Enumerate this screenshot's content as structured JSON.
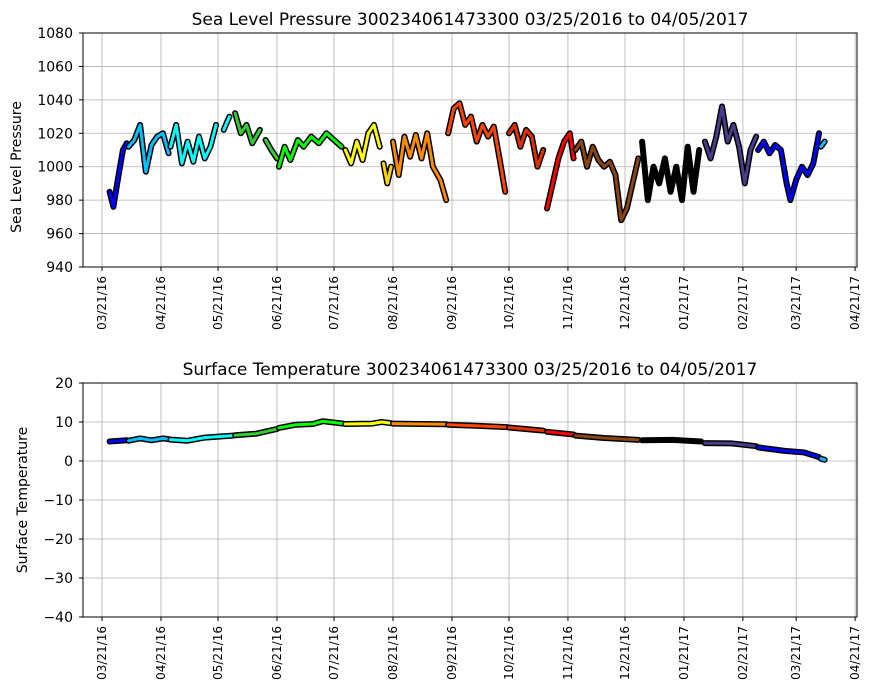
{
  "chart_data": [
    {
      "type": "scatter",
      "title": "Sea Level Pressure 300234061473300  03/25/2016 to 04/05/2017",
      "xlabel": "",
      "ylabel": "Sea Level Pressure",
      "ylim": [
        940,
        1080
      ],
      "yticks": [
        940,
        960,
        980,
        1000,
        1020,
        1040,
        1060,
        1080
      ],
      "xlim": [
        "03/11/16",
        "04/22/17"
      ],
      "xticks": [
        "03/21/16",
        "04/21/16",
        "05/21/16",
        "06/21/16",
        "07/21/16",
        "08/21/16",
        "09/21/16",
        "10/21/16",
        "11/21/16",
        "12/21/16",
        "01/21/17",
        "02/21/17",
        "03/21/17",
        "04/21/17"
      ],
      "grid": true,
      "segments": [
        {
          "color": "#0000ff",
          "points": [
            [
              "03/25/16",
              985
            ],
            [
              "03/27/16",
              976
            ],
            [
              "03/29/16",
              990
            ],
            [
              "04/01/16",
              1010
            ],
            [
              "04/03/16",
              1014
            ]
          ]
        },
        {
          "color": "#00bfff",
          "points": [
            [
              "04/04/16",
              1012
            ],
            [
              "04/07/16",
              1016
            ],
            [
              "04/10/16",
              1025
            ],
            [
              "04/13/16",
              997
            ],
            [
              "04/16/16",
              1013
            ],
            [
              "04/19/16",
              1018
            ],
            [
              "04/22/16",
              1020
            ],
            [
              "04/25/16",
              1008
            ]
          ]
        },
        {
          "color": "#00ffff",
          "points": [
            [
              "04/26/16",
              1012
            ],
            [
              "04/29/16",
              1025
            ],
            [
              "05/02/16",
              1002
            ],
            [
              "05/05/16",
              1015
            ],
            [
              "05/08/16",
              1003
            ],
            [
              "05/11/16",
              1018
            ],
            [
              "05/14/16",
              1005
            ],
            [
              "05/17/16",
              1012
            ],
            [
              "05/20/16",
              1025
            ]
          ]
        },
        {
          "color": "#00ffff",
          "points": [
            [
              "05/24/16",
              1022
            ],
            [
              "05/27/16",
              1030
            ]
          ]
        },
        {
          "color": "#32cd32",
          "points": [
            [
              "05/30/16",
              1032
            ],
            [
              "06/02/16",
              1020
            ],
            [
              "06/05/16",
              1025
            ],
            [
              "06/08/16",
              1014
            ],
            [
              "06/12/16",
              1022
            ]
          ]
        },
        {
          "color": "#32cd32",
          "points": [
            [
              "06/15/16",
              1016
            ],
            [
              "06/18/16",
              1010
            ],
            [
              "06/21/16",
              1005
            ]
          ]
        },
        {
          "color": "#00ff00",
          "points": [
            [
              "06/22/16",
              1000
            ],
            [
              "06/25/16",
              1012
            ],
            [
              "06/28/16",
              1004
            ],
            [
              "07/02/16",
              1016
            ],
            [
              "07/05/16",
              1012
            ],
            [
              "07/09/16",
              1018
            ],
            [
              "07/13/16",
              1014
            ],
            [
              "07/17/16",
              1020
            ],
            [
              "07/21/16",
              1016
            ],
            [
              "07/25/16",
              1012
            ]
          ]
        },
        {
          "color": "#ffff00",
          "points": [
            [
              "07/27/16",
              1010
            ],
            [
              "07/30/16",
              1002
            ],
            [
              "08/02/16",
              1015
            ],
            [
              "08/05/16",
              1004
            ],
            [
              "08/08/16",
              1020
            ],
            [
              "08/11/16",
              1025
            ],
            [
              "08/14/16",
              1012
            ]
          ]
        },
        {
          "color": "#ffd700",
          "points": [
            [
              "08/16/16",
              1002
            ],
            [
              "08/18/16",
              990
            ],
            [
              "08/20/16",
              1000
            ]
          ]
        },
        {
          "color": "#ff8c00",
          "points": [
            [
              "08/21/16",
              1015
            ],
            [
              "08/24/16",
              995
            ],
            [
              "08/27/16",
              1018
            ],
            [
              "08/30/16",
              1006
            ],
            [
              "09/02/16",
              1019
            ],
            [
              "09/05/16",
              1005
            ],
            [
              "09/08/16",
              1020
            ],
            [
              "09/11/16",
              1000
            ],
            [
              "09/15/16",
              992
            ],
            [
              "09/18/16",
              980
            ]
          ]
        },
        {
          "color": "#ff4500",
          "points": [
            [
              "09/19/16",
              1020
            ],
            [
              "09/22/16",
              1035
            ],
            [
              "09/25/16",
              1038
            ],
            [
              "09/28/16",
              1025
            ],
            [
              "10/01/16",
              1030
            ],
            [
              "10/04/16",
              1015
            ],
            [
              "10/07/16",
              1025
            ],
            [
              "10/10/16",
              1018
            ],
            [
              "10/13/16",
              1024
            ],
            [
              "10/16/16",
              1005
            ],
            [
              "10/19/16",
              985
            ]
          ]
        },
        {
          "color": "#e03000",
          "points": [
            [
              "10/21/16",
              1020
            ],
            [
              "10/24/16",
              1025
            ],
            [
              "10/27/16",
              1012
            ],
            [
              "10/30/16",
              1022
            ],
            [
              "11/02/16",
              1018
            ],
            [
              "11/05/16",
              1000
            ],
            [
              "11/08/16",
              1010
            ]
          ]
        },
        {
          "color": "#ff0000",
          "points": [
            [
              "11/10/16",
              975
            ],
            [
              "11/13/16",
              990
            ],
            [
              "11/16/16",
              1005
            ],
            [
              "11/19/16",
              1015
            ],
            [
              "11/22/16",
              1020
            ],
            [
              "11/24/16",
              1005
            ]
          ]
        },
        {
          "color": "#8b4513",
          "points": [
            [
              "11/25/16",
              1010
            ],
            [
              "11/28/16",
              1015
            ],
            [
              "12/01/16",
              1000
            ],
            [
              "12/04/16",
              1012
            ],
            [
              "12/07/16",
              1004
            ],
            [
              "12/10/16",
              1000
            ],
            [
              "12/13/16",
              1003
            ],
            [
              "12/16/16",
              995
            ],
            [
              "12/19/16",
              968
            ],
            [
              "12/22/16",
              975
            ],
            [
              "12/25/16",
              990
            ],
            [
              "12/28/16",
              1005
            ]
          ]
        },
        {
          "color": "#000000",
          "points": [
            [
              "12/30/16",
              1015
            ],
            [
              "01/02/17",
              980
            ],
            [
              "01/05/17",
              1000
            ],
            [
              "01/08/17",
              990
            ],
            [
              "01/11/17",
              1005
            ],
            [
              "01/14/17",
              985
            ],
            [
              "01/17/17",
              1000
            ],
            [
              "01/20/17",
              980
            ],
            [
              "01/23/17",
              1012
            ],
            [
              "01/26/17",
              985
            ],
            [
              "01/29/17",
              1010
            ]
          ]
        },
        {
          "color": "#483d8b",
          "points": [
            [
              "02/01/17",
              1015
            ],
            [
              "02/04/17",
              1005
            ],
            [
              "02/07/17",
              1018
            ],
            [
              "02/10/17",
              1036
            ],
            [
              "02/13/17",
              1015
            ],
            [
              "02/16/17",
              1025
            ],
            [
              "02/19/17",
              1012
            ],
            [
              "02/22/17",
              990
            ],
            [
              "02/25/17",
              1010
            ],
            [
              "02/28/17",
              1018
            ]
          ]
        },
        {
          "color": "#0000ff",
          "points": [
            [
              "03/01/17",
              1010
            ],
            [
              "03/04/17",
              1015
            ],
            [
              "03/07/17",
              1008
            ],
            [
              "03/10/17",
              1013
            ],
            [
              "03/13/17",
              1010
            ],
            [
              "03/16/17",
              990
            ],
            [
              "03/18/17",
              980
            ],
            [
              "03/21/17",
              992
            ],
            [
              "03/24/17",
              1000
            ],
            [
              "03/27/17",
              995
            ],
            [
              "03/30/17",
              1002
            ],
            [
              "04/02/17",
              1020
            ]
          ]
        },
        {
          "color": "#00bfff",
          "points": [
            [
              "04/03/17",
              1012
            ],
            [
              "04/05/17",
              1015
            ]
          ]
        }
      ]
    },
    {
      "type": "scatter",
      "title": "Surface Temperature 300234061473300  03/25/2016 to 04/05/2017",
      "xlabel": "",
      "ylabel": "Surface Temperature",
      "ylim": [
        -40,
        20
      ],
      "yticks": [
        -40,
        -30,
        -20,
        -10,
        0,
        10,
        20
      ],
      "ytick_labels": [
        "−40",
        "−30",
        "−20",
        "−10",
        "0",
        "10",
        "20"
      ],
      "xlim": [
        "03/11/16",
        "04/22/17"
      ],
      "xticks": [
        "03/21/16",
        "04/21/16",
        "05/21/16",
        "06/21/16",
        "07/21/16",
        "08/21/16",
        "09/21/16",
        "10/21/16",
        "11/21/16",
        "12/21/16",
        "01/21/17",
        "02/21/17",
        "03/21/17",
        "04/21/17"
      ],
      "grid": true,
      "segments": [
        {
          "color": "#0000ff",
          "points": [
            [
              "03/25/16",
              5.0
            ],
            [
              "04/03/16",
              5.3
            ]
          ]
        },
        {
          "color": "#00bfff",
          "points": [
            [
              "04/04/16",
              5.2
            ],
            [
              "04/10/16",
              5.8
            ],
            [
              "04/16/16",
              5.3
            ],
            [
              "04/22/16",
              5.8
            ],
            [
              "04/25/16",
              5.6
            ]
          ]
        },
        {
          "color": "#00ffff",
          "points": [
            [
              "04/26/16",
              5.5
            ],
            [
              "05/05/16",
              5.2
            ],
            [
              "05/14/16",
              6.0
            ],
            [
              "05/23/16",
              6.3
            ],
            [
              "05/29/16",
              6.5
            ]
          ]
        },
        {
          "color": "#32cd32",
          "points": [
            [
              "05/30/16",
              6.6
            ],
            [
              "06/10/16",
              7.0
            ],
            [
              "06/21/16",
              8.2
            ]
          ]
        },
        {
          "color": "#00ff00",
          "points": [
            [
              "06/22/16",
              8.5
            ],
            [
              "07/01/16",
              9.3
            ],
            [
              "07/10/16",
              9.5
            ],
            [
              "07/15/16",
              10.2
            ],
            [
              "07/26/16",
              9.6
            ]
          ]
        },
        {
          "color": "#ffff00",
          "points": [
            [
              "07/27/16",
              9.5
            ],
            [
              "08/10/16",
              9.6
            ],
            [
              "08/15/16",
              10.0
            ],
            [
              "08/20/16",
              9.7
            ]
          ]
        },
        {
          "color": "#ff8c00",
          "points": [
            [
              "08/21/16",
              9.6
            ],
            [
              "09/05/16",
              9.5
            ],
            [
              "09/18/16",
              9.4
            ]
          ]
        },
        {
          "color": "#ff4500",
          "points": [
            [
              "09/19/16",
              9.3
            ],
            [
              "10/05/16",
              9.0
            ],
            [
              "10/20/16",
              8.7
            ]
          ]
        },
        {
          "color": "#e03000",
          "points": [
            [
              "10/21/16",
              8.6
            ],
            [
              "11/08/16",
              7.8
            ]
          ]
        },
        {
          "color": "#ff0000",
          "points": [
            [
              "11/10/16",
              7.5
            ],
            [
              "11/24/16",
              6.8
            ]
          ]
        },
        {
          "color": "#8b4513",
          "points": [
            [
              "11/25/16",
              6.5
            ],
            [
              "12/10/16",
              5.9
            ],
            [
              "12/28/16",
              5.4
            ]
          ]
        },
        {
          "color": "#000000",
          "points": [
            [
              "12/30/16",
              5.3
            ],
            [
              "01/15/17",
              5.4
            ],
            [
              "01/30/17",
              5.0
            ]
          ]
        },
        {
          "color": "#483d8b",
          "points": [
            [
              "02/01/17",
              4.6
            ],
            [
              "02/15/17",
              4.5
            ],
            [
              "02/28/17",
              3.8
            ]
          ]
        },
        {
          "color": "#0000ff",
          "points": [
            [
              "03/01/17",
              3.5
            ],
            [
              "03/15/17",
              2.6
            ],
            [
              "03/25/17",
              2.2
            ],
            [
              "04/02/17",
              1.0
            ]
          ]
        },
        {
          "color": "#00bfff",
          "points": [
            [
              "04/03/17",
              0.6
            ],
            [
              "04/05/17",
              0.3
            ]
          ]
        }
      ]
    }
  ]
}
